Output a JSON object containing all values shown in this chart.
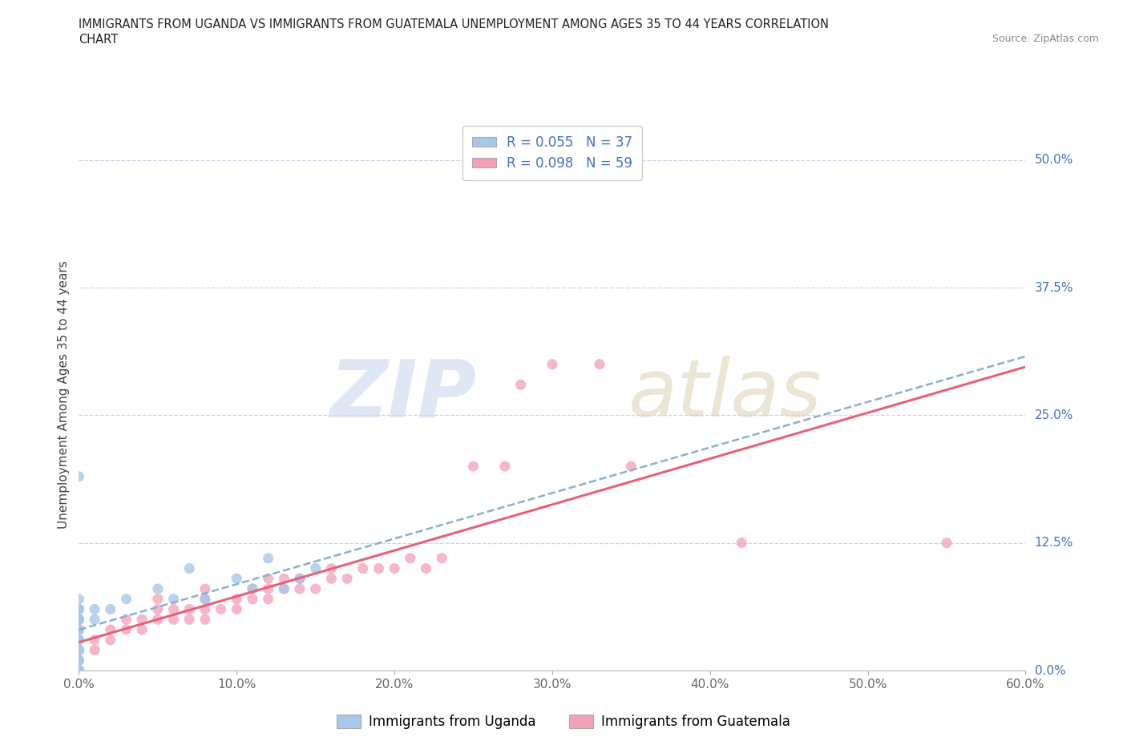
{
  "title_line1": "IMMIGRANTS FROM UGANDA VS IMMIGRANTS FROM GUATEMALA UNEMPLOYMENT AMONG AGES 35 TO 44 YEARS CORRELATION",
  "title_line2": "CHART",
  "source": "Source: ZipAtlas.com",
  "ylabel": "Unemployment Among Ages 35 to 44 years",
  "legend_uganda": "Immigrants from Uganda",
  "legend_guatemala": "Immigrants from Guatemala",
  "R_uganda": 0.055,
  "N_uganda": 37,
  "R_guatemala": 0.098,
  "N_guatemala": 59,
  "color_uganda": "#a8c8e8",
  "color_guatemala": "#f4a0b8",
  "trendline_uganda": "#8ab0d0",
  "trendline_guatemala": "#e8607a",
  "xlim": [
    0.0,
    0.6
  ],
  "ylim": [
    0.0,
    0.54
  ],
  "xtick_values": [
    0.0,
    0.1,
    0.2,
    0.3,
    0.4,
    0.5,
    0.6
  ],
  "ytick_values": [
    0.0,
    0.125,
    0.25,
    0.375,
    0.5
  ],
  "ytick_labels": [
    "0.0%",
    "12.5%",
    "25.0%",
    "37.5%",
    "50.0%"
  ],
  "xtick_labels": [
    "0.0%",
    "10.0%",
    "20.0%",
    "30.0%",
    "40.0%",
    "50.0%",
    "60.0%"
  ],
  "background_color": "#ffffff",
  "grid_color": "#c8d4e8",
  "right_label_color": "#4472c4",
  "uganda_scatter_x": [
    0.0,
    0.0,
    0.0,
    0.0,
    0.0,
    0.0,
    0.0,
    0.0,
    0.0,
    0.0,
    0.0,
    0.0,
    0.0,
    0.0,
    0.0,
    0.0,
    0.0,
    0.0,
    0.0,
    0.0,
    0.0,
    0.0,
    0.0,
    0.01,
    0.01,
    0.02,
    0.03,
    0.05,
    0.06,
    0.07,
    0.08,
    0.1,
    0.11,
    0.12,
    0.13,
    0.14,
    0.15
  ],
  "uganda_scatter_y": [
    0.0,
    0.0,
    0.0,
    0.0,
    0.0,
    0.0,
    0.01,
    0.01,
    0.02,
    0.02,
    0.03,
    0.03,
    0.04,
    0.04,
    0.05,
    0.05,
    0.05,
    0.06,
    0.06,
    0.06,
    0.06,
    0.07,
    0.19,
    0.05,
    0.06,
    0.06,
    0.07,
    0.08,
    0.07,
    0.1,
    0.07,
    0.09,
    0.08,
    0.11,
    0.08,
    0.09,
    0.1
  ],
  "guatemala_scatter_x": [
    0.0,
    0.0,
    0.0,
    0.0,
    0.0,
    0.0,
    0.0,
    0.0,
    0.0,
    0.0,
    0.01,
    0.01,
    0.02,
    0.02,
    0.03,
    0.03,
    0.04,
    0.04,
    0.05,
    0.05,
    0.05,
    0.06,
    0.06,
    0.07,
    0.07,
    0.08,
    0.08,
    0.08,
    0.08,
    0.09,
    0.1,
    0.1,
    0.11,
    0.11,
    0.12,
    0.12,
    0.12,
    0.13,
    0.13,
    0.14,
    0.14,
    0.15,
    0.16,
    0.16,
    0.17,
    0.18,
    0.19,
    0.2,
    0.21,
    0.22,
    0.23,
    0.25,
    0.27,
    0.28,
    0.3,
    0.33,
    0.35,
    0.42,
    0.55
  ],
  "guatemala_scatter_y": [
    0.0,
    0.0,
    0.0,
    0.0,
    0.01,
    0.02,
    0.02,
    0.03,
    0.04,
    0.05,
    0.02,
    0.03,
    0.03,
    0.04,
    0.04,
    0.05,
    0.04,
    0.05,
    0.05,
    0.06,
    0.07,
    0.05,
    0.06,
    0.05,
    0.06,
    0.05,
    0.06,
    0.07,
    0.08,
    0.06,
    0.06,
    0.07,
    0.07,
    0.08,
    0.07,
    0.08,
    0.09,
    0.08,
    0.09,
    0.08,
    0.09,
    0.08,
    0.09,
    0.1,
    0.09,
    0.1,
    0.1,
    0.1,
    0.11,
    0.1,
    0.11,
    0.2,
    0.2,
    0.28,
    0.3,
    0.3,
    0.2,
    0.125,
    0.125
  ]
}
